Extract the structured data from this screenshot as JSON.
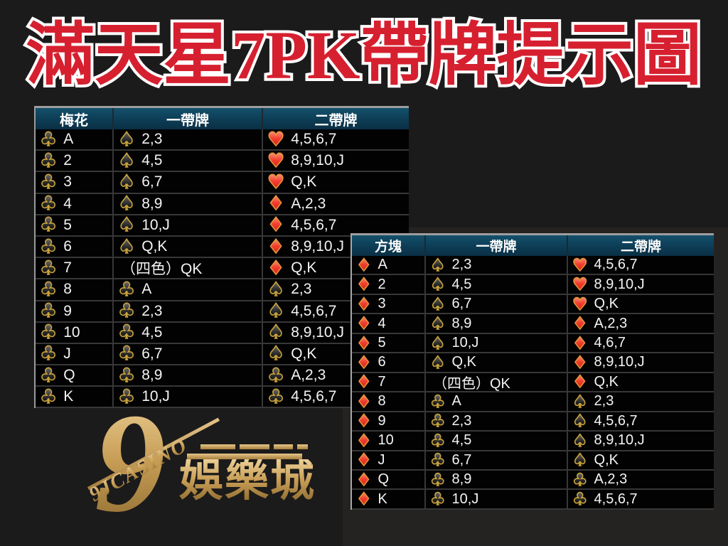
{
  "title": "滿天星7PK帶牌提示圖",
  "colors": {
    "title_red": "#d6202f",
    "title_outline": "#ffffff",
    "header_teal": "#0d3d55",
    "suit_gold_outline": "#c7a23b",
    "suit_red": "#e62222",
    "logo_gold": "#c59d58",
    "cell_black": "#020202"
  },
  "tables": [
    {
      "id": "clubs-table",
      "suit": "club",
      "headers": [
        "梅花",
        "一帶牌",
        "二帶牌"
      ],
      "rows": [
        {
          "rank": "A",
          "one_suit": "spade",
          "one": "2,3",
          "two_suit": "heart",
          "two": "4,5,6,7"
        },
        {
          "rank": "2",
          "one_suit": "spade",
          "one": "4,5",
          "two_suit": "heart",
          "two": "8,9,10,J"
        },
        {
          "rank": "3",
          "one_suit": "spade",
          "one": "6,7",
          "two_suit": "heart",
          "two": "Q,K"
        },
        {
          "rank": "4",
          "one_suit": "spade",
          "one": "8,9",
          "two_suit": "diamond",
          "two": "A,2,3"
        },
        {
          "rank": "5",
          "one_suit": "spade",
          "one": "10,J",
          "two_suit": "diamond",
          "two": "4,5,6,7"
        },
        {
          "rank": "6",
          "one_suit": "spade",
          "one": "Q,K",
          "two_suit": "diamond",
          "two": "8,9,10,J"
        },
        {
          "rank": "7",
          "one_suit": null,
          "one": "（四色）QK",
          "two_suit": "diamond",
          "two": "Q,K"
        },
        {
          "rank": "8",
          "one_suit": "club",
          "one": "A",
          "two_suit": "spade",
          "two": "2,3"
        },
        {
          "rank": "9",
          "one_suit": "club",
          "one": "2,3",
          "two_suit": "spade",
          "two": "4,5,6,7"
        },
        {
          "rank": "10",
          "one_suit": "club",
          "one": "4,5",
          "two_suit": "spade",
          "two": "8,9,10,J"
        },
        {
          "rank": "J",
          "one_suit": "club",
          "one": "6,7",
          "two_suit": "spade",
          "two": "Q,K"
        },
        {
          "rank": "Q",
          "one_suit": "club",
          "one": "8,9",
          "two_suit": "club",
          "two": "A,2,3"
        },
        {
          "rank": "K",
          "one_suit": "club",
          "one": "10,J",
          "two_suit": "club",
          "two": "4,5,6,7"
        }
      ]
    },
    {
      "id": "diamonds-table",
      "suit": "diamond",
      "headers": [
        "方塊",
        "一帶牌",
        "二帶牌"
      ],
      "rows": [
        {
          "rank": "A",
          "one_suit": "spade",
          "one": "2,3",
          "two_suit": "heart",
          "two": "4,5,6,7"
        },
        {
          "rank": "2",
          "one_suit": "spade",
          "one": "4,5",
          "two_suit": "heart",
          "two": "8,9,10,J"
        },
        {
          "rank": "3",
          "one_suit": "spade",
          "one": "6,7",
          "two_suit": "heart",
          "two": "Q,K"
        },
        {
          "rank": "4",
          "one_suit": "spade",
          "one": "8,9",
          "two_suit": "diamond",
          "two": "A,2,3"
        },
        {
          "rank": "5",
          "one_suit": "spade",
          "one": "10,J",
          "two_suit": "diamond",
          "two": "4,6,7"
        },
        {
          "rank": "6",
          "one_suit": "spade",
          "one": "Q,K",
          "two_suit": "diamond",
          "two": "8,9,10,J"
        },
        {
          "rank": "7",
          "one_suit": null,
          "one": "（四色）QK",
          "two_suit": "diamond",
          "two": "Q,K"
        },
        {
          "rank": "8",
          "one_suit": "club",
          "one": "A",
          "two_suit": "spade",
          "two": "2,3"
        },
        {
          "rank": "9",
          "one_suit": "club",
          "one": "2,3",
          "two_suit": "spade",
          "two": "4,5,6,7"
        },
        {
          "rank": "10",
          "one_suit": "club",
          "one": "4,5",
          "two_suit": "spade",
          "two": "8,9,10,J"
        },
        {
          "rank": "J",
          "one_suit": "club",
          "one": "6,7",
          "two_suit": "spade",
          "two": "Q,K"
        },
        {
          "rank": "Q",
          "one_suit": "club",
          "one": "8,9",
          "two_suit": "club",
          "two": "A,2,3"
        },
        {
          "rank": "K",
          "one_suit": "club",
          "one": "10,J",
          "two_suit": "club",
          "two": "4,5,6,7"
        }
      ]
    }
  ],
  "logo": {
    "big_glyph": "9",
    "brand": "9JCASINO",
    "cjk": "娛樂城"
  }
}
